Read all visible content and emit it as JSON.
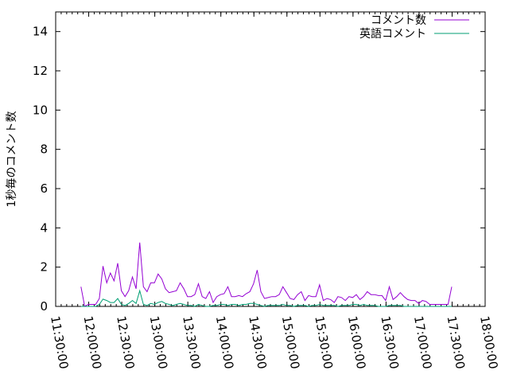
{
  "chart_data": {
    "type": "line",
    "title": "",
    "xlabel": "",
    "ylabel": "1秒毎のコメント数",
    "ylim": [
      0,
      15
    ],
    "xlim": [
      "11:30:00",
      "18:00:00"
    ],
    "y_ticks": [
      "0",
      "2",
      "4",
      "6",
      "8",
      "10",
      "12",
      "14"
    ],
    "x_ticks": [
      "11:30:00",
      "12:00:00",
      "12:30:00",
      "13:00:00",
      "13:30:00",
      "14:00:00",
      "14:30:00",
      "15:00:00",
      "15:30:00",
      "16:00:00",
      "16:30:00",
      "17:00:00",
      "17:30:00",
      "18:00:00"
    ],
    "grid": false,
    "legend_position": "top-right",
    "x": [
      "11:53:00",
      "11:56:20",
      "11:59:40",
      "12:03:00",
      "12:06:20",
      "12:09:40",
      "12:13:00",
      "12:16:20",
      "12:19:40",
      "12:23:00",
      "12:26:20",
      "12:29:40",
      "12:33:00",
      "12:36:20",
      "12:39:40",
      "12:43:00",
      "12:46:20",
      "12:49:40",
      "12:53:00",
      "12:56:20",
      "12:59:40",
      "13:03:00",
      "13:06:20",
      "13:09:40",
      "13:13:00",
      "13:16:20",
      "13:19:40",
      "13:23:00",
      "13:26:20",
      "13:29:40",
      "13:33:00",
      "13:36:20",
      "13:39:40",
      "13:43:00",
      "13:46:20",
      "13:49:40",
      "13:53:00",
      "13:56:20",
      "13:59:40",
      "14:03:00",
      "14:06:20",
      "14:09:40",
      "14:13:00",
      "14:16:20",
      "14:19:40",
      "14:23:00",
      "14:26:20",
      "14:29:40",
      "14:33:00",
      "14:36:20",
      "14:39:40",
      "14:43:00",
      "14:46:20",
      "14:49:40",
      "14:53:00",
      "14:56:20",
      "14:59:40",
      "15:03:00",
      "15:06:20",
      "15:09:40",
      "15:13:00",
      "15:16:20",
      "15:19:40",
      "15:23:00",
      "15:26:20",
      "15:29:40",
      "15:33:00",
      "15:36:20",
      "15:39:40",
      "15:43:00",
      "15:46:20",
      "15:49:40",
      "15:53:00",
      "15:56:20",
      "15:59:40",
      "16:03:00",
      "16:06:20",
      "16:09:40",
      "16:13:00",
      "16:16:20",
      "16:19:40",
      "16:23:00",
      "16:26:20",
      "16:29:40",
      "16:33:00",
      "16:36:20",
      "16:39:40",
      "16:43:00",
      "16:46:20",
      "16:49:40",
      "16:53:00",
      "16:56:20",
      "16:59:40",
      "17:03:00",
      "17:06:20",
      "17:09:40",
      "17:13:00",
      "17:16:20",
      "17:19:40",
      "17:23:00",
      "17:26:20",
      "17:29:40"
    ],
    "series": [
      {
        "name": "コメント数",
        "color": "#9400d3",
        "values": [
          1.0,
          0,
          0.1,
          0.1,
          0.1,
          0.4,
          2.05,
          1.2,
          1.7,
          1.3,
          2.2,
          0.8,
          0.5,
          0.8,
          1.5,
          0.9,
          3.25,
          1.0,
          0.75,
          1.2,
          1.2,
          1.65,
          1.4,
          0.9,
          0.7,
          0.75,
          0.8,
          1.2,
          0.9,
          0.5,
          0.5,
          0.6,
          1.15,
          0.5,
          0.4,
          0.75,
          0.2,
          0.5,
          0.6,
          0.65,
          1.0,
          0.5,
          0.5,
          0.55,
          0.5,
          0.65,
          0.75,
          1.15,
          1.85,
          0.75,
          0.4,
          0.45,
          0.5,
          0.5,
          0.6,
          1.0,
          0.7,
          0.4,
          0.35,
          0.6,
          0.75,
          0.3,
          0.55,
          0.5,
          0.5,
          1.1,
          0.3,
          0.4,
          0.35,
          0.2,
          0.5,
          0.45,
          0.3,
          0.5,
          0.45,
          0.6,
          0.35,
          0.5,
          0.75,
          0.6,
          0.6,
          0.55,
          0.55,
          0.3,
          1.0,
          0.35,
          0.5,
          0.7,
          0.5,
          0.35,
          0.3,
          0.3,
          0.15,
          0.3,
          0.25,
          0.1,
          0.1,
          0.1,
          0.1,
          0.1,
          0.1,
          1.0
        ]
      },
      {
        "name": "英語コメント",
        "color": "#009e73",
        "values": [
          0,
          0,
          0,
          0,
          0,
          0.1,
          0.37,
          0.3,
          0.2,
          0.2,
          0.4,
          0.1,
          0.05,
          0.15,
          0.3,
          0.15,
          0.8,
          0.1,
          0.05,
          0.15,
          0.1,
          0.2,
          0.25,
          0.15,
          0.1,
          0.05,
          0.1,
          0.15,
          0.1,
          0.05,
          0.05,
          0,
          0.1,
          0.05,
          0,
          0,
          0.05,
          0.05,
          0.1,
          0.1,
          0.05,
          0.1,
          0.1,
          0.05,
          0.1,
          0.1,
          0.15,
          0.15,
          0.1,
          0.05,
          0,
          0.05,
          0.05,
          0.05,
          0.05,
          0.1,
          0.05,
          0.05,
          0,
          0.05,
          0.05,
          0.05,
          0,
          0.05,
          0.05,
          0.1,
          0.05,
          0.05,
          0.05,
          0.05,
          0,
          0.05,
          0.05,
          0.05,
          0.1,
          0.1,
          0.05,
          0.1,
          0.05,
          0.05,
          0.05,
          0,
          0,
          0,
          0.05,
          0.05,
          0.05,
          0.05,
          0,
          0,
          0,
          0,
          0,
          0,
          0,
          0,
          0,
          0,
          0,
          0,
          0,
          0
        ]
      }
    ]
  }
}
